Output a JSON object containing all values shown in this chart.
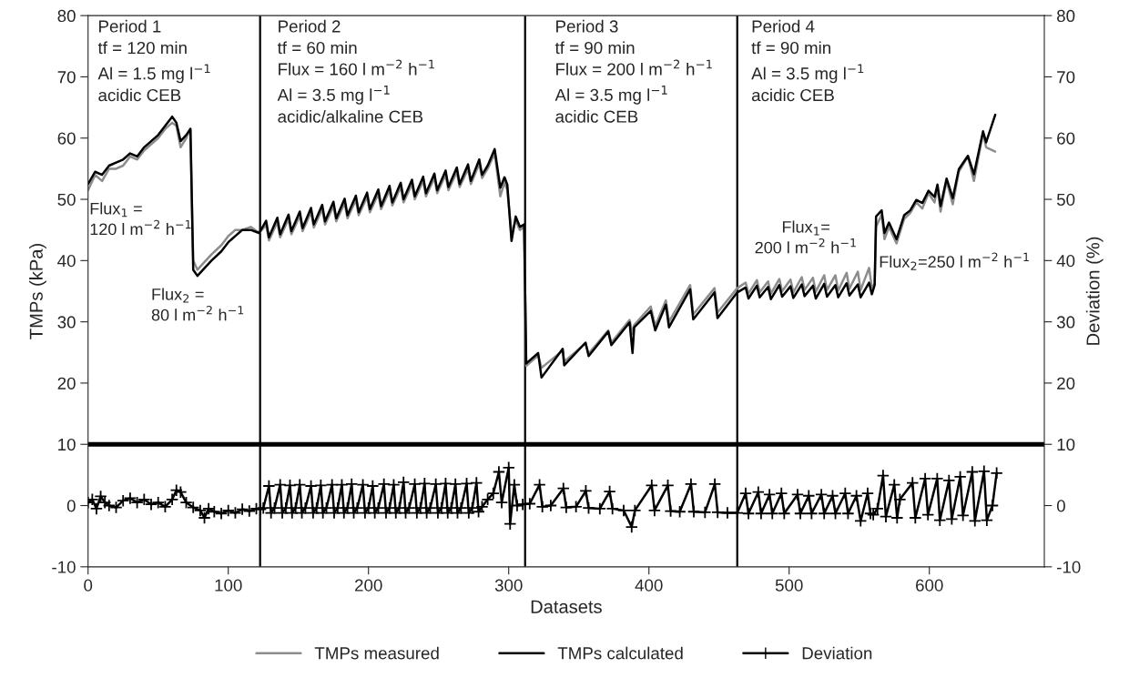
{
  "chart_data": {
    "type": "line",
    "xlabel": "Datasets",
    "ylabel": "TMPs (kPa)",
    "y2label": "Deviation (%)",
    "xlim": [
      0,
      682
    ],
    "xticks": [
      0,
      100,
      200,
      300,
      400,
      500,
      600
    ],
    "ylim": [
      -10,
      80
    ],
    "yticks": [
      -10,
      0,
      10,
      20,
      30,
      40,
      50,
      60,
      70,
      80
    ],
    "y2lim": [
      -10,
      80
    ],
    "y2ticks": [
      -10,
      0,
      10,
      20,
      30,
      40,
      50,
      60,
      70,
      80
    ],
    "legend": "bottom",
    "x": [
      0,
      5,
      10,
      15,
      20,
      25,
      30,
      35,
      40,
      45,
      50,
      55,
      60,
      63,
      66,
      70,
      73,
      75,
      78,
      82,
      88,
      95,
      100,
      105,
      110,
      116,
      122,
      127,
      129,
      135,
      137,
      143,
      145,
      151,
      153,
      159,
      161,
      167,
      169,
      175,
      177,
      183,
      185,
      191,
      193,
      199,
      201,
      207,
      209,
      215,
      217,
      223,
      225,
      231,
      233,
      239,
      241,
      247,
      249,
      255,
      257,
      263,
      265,
      271,
      273,
      279,
      281,
      285,
      290,
      294,
      297,
      299,
      302,
      305,
      308,
      311,
      312.5,
      321,
      323.4,
      338.5,
      339.6,
      354.8,
      357,
      371,
      373.2,
      386.2,
      388.3,
      389.5,
      401.3,
      404.5,
      412.1,
      414.3,
      429.4,
      431.6,
      446.8,
      448.9,
      463,
      469,
      471,
      477,
      479,
      485,
      487,
      493,
      495,
      501,
      503,
      509,
      511,
      517,
      519,
      525,
      527,
      533,
      535,
      541,
      543,
      549,
      551,
      557,
      559,
      561,
      562,
      566,
      568,
      571.2,
      576.6,
      582,
      586.4,
      590.7,
      595,
      599.4,
      603.7,
      605.8,
      608,
      612.3,
      616.7,
      621,
      627.5,
      631.8,
      638.3,
      640.5,
      647
    ],
    "series": [
      {
        "name": "TMPs measured",
        "color": "#8c8c8c",
        "values": [
          51.5,
          54,
          53,
          55,
          55,
          55.5,
          57,
          56.5,
          58,
          59,
          60,
          61.5,
          62.5,
          62,
          58.5,
          60,
          61.5,
          40,
          38.5,
          39.5,
          41,
          42.5,
          44,
          45,
          45,
          45.5,
          44.5,
          45.8,
          43.3,
          46.3,
          43.8,
          46.8,
          44.3,
          47.3,
          44.8,
          47.9,
          45.4,
          48.4,
          45.9,
          48.9,
          46.4,
          49.4,
          46.9,
          49.9,
          47.4,
          50.4,
          47.9,
          50.9,
          48.4,
          51.5,
          49.0,
          52.0,
          49.5,
          52.5,
          50.0,
          53.0,
          50.5,
          53.5,
          51.0,
          54.0,
          51.5,
          54.5,
          52.0,
          55.0,
          52.5,
          55.8,
          53.5,
          55,
          57.5,
          50.5,
          52.8,
          51.5,
          44.5,
          46.5,
          45,
          45.5,
          22.8,
          24.5,
          22.5,
          25.3,
          23.5,
          26.5,
          24.8,
          28.6,
          26.6,
          30.3,
          28.0,
          29.5,
          32.5,
          29.3,
          33.5,
          30,
          36,
          31.2,
          35.5,
          31.5,
          35.5,
          36.4,
          34.6,
          36.8,
          34.8,
          36.6,
          34.6,
          37.0,
          35.0,
          36.9,
          34.8,
          37.3,
          35.2,
          37.2,
          34.9,
          37.6,
          35.2,
          37.6,
          35.1,
          38.0,
          35.4,
          38.2,
          35.2,
          38.8,
          35.6,
          36.2,
          45.5,
          47.5,
          43.5,
          45.5,
          42.8,
          46.8,
          47.8,
          49.5,
          48.5,
          51,
          49.5,
          52,
          48,
          53,
          49.2,
          54.5,
          57,
          53,
          60.8,
          58.5,
          57.8
        ]
      },
      {
        "name": "TMPs calculated",
        "color": "#000000",
        "values": [
          52.5,
          54.5,
          54,
          55.5,
          56,
          56.5,
          57.5,
          57,
          58.5,
          59.5,
          60.5,
          62,
          63.5,
          62.5,
          59.5,
          60.5,
          61.5,
          38.5,
          37.5,
          38.5,
          40,
          41.5,
          43,
          44,
          45,
          45,
          44.5,
          46.5,
          43.8,
          47.0,
          44.3,
          47.5,
          44.8,
          48.0,
          45.3,
          48.6,
          45.9,
          49.1,
          46.4,
          49.6,
          46.9,
          50.1,
          47.4,
          50.6,
          47.9,
          51.1,
          48.4,
          51.6,
          48.9,
          52.2,
          49.5,
          52.7,
          50.0,
          53.2,
          50.5,
          53.7,
          51.0,
          54.2,
          51.5,
          54.7,
          52.0,
          55.2,
          52.5,
          55.7,
          53.0,
          56.5,
          54.0,
          55.5,
          58.2,
          51.9,
          53.6,
          52.4,
          43.2,
          47.2,
          45.5,
          45.9,
          23.2,
          24.9,
          20.9,
          25.6,
          22.9,
          26.6,
          24.4,
          28.4,
          26.2,
          29.9,
          24.9,
          29.1,
          31.8,
          28.6,
          32.8,
          29.1,
          35.3,
          30.4,
          34.8,
          30.6,
          34.8,
          35.6,
          33.8,
          35.9,
          34.0,
          35.7,
          33.7,
          36.0,
          34.1,
          35.8,
          33.9,
          36.1,
          34.2,
          35.9,
          33.8,
          36.2,
          34.1,
          36.0,
          34.0,
          36.3,
          34.3,
          36.1,
          34.0,
          36.4,
          34.5,
          36.0,
          47.2,
          48.2,
          44.5,
          46.2,
          43.5,
          47.4,
          48.2,
          49.9,
          49.4,
          51.4,
          50.4,
          52.4,
          48.9,
          53.4,
          50.2,
          54.9,
          57.1,
          54.1,
          61.1,
          59.3,
          63.8
        ]
      },
      {
        "name": "Deviation",
        "color": "#000000",
        "axis": "y2",
        "marker": "cross",
        "x": [
          0,
          3,
          6,
          9,
          12,
          15,
          20,
          25,
          30,
          35,
          40,
          45,
          50,
          55,
          60,
          63,
          66,
          70,
          75,
          80,
          83,
          86,
          90,
          95,
          100,
          105,
          110,
          115,
          120,
          123,
          125,
          129,
          130.5,
          133,
          137,
          138.5,
          141,
          144,
          145.5,
          148,
          151,
          152.5,
          155,
          159,
          160.5,
          163,
          166,
          167.5,
          170,
          174,
          175.5,
          178,
          181,
          182.5,
          185,
          188,
          189.5,
          192,
          196,
          197.5,
          200,
          203,
          204.5,
          207,
          211,
          212.5,
          215,
          218,
          219.5,
          222,
          225,
          226.5,
          229,
          233,
          234.5,
          237,
          240,
          241.5,
          244,
          248,
          249.5,
          252,
          255,
          256.5,
          259,
          262,
          263.5,
          266,
          270,
          271.5,
          274,
          277,
          278.5,
          281,
          285,
          289,
          293,
          295,
          300,
          301,
          304,
          306,
          310,
          315,
          322,
          324,
          330,
          339,
          341,
          348,
          355,
          357,
          365,
          372,
          374,
          382,
          387.7,
          390,
          402,
          404,
          413.5,
          415.5,
          422,
          430,
          432,
          440,
          447,
          449,
          456,
          463,
          469,
          471,
          478,
          480,
          486,
          488,
          494.5,
          496.5,
          506,
          508,
          514,
          516,
          523,
          525,
          531,
          533,
          540,
          542,
          548,
          551,
          556,
          558,
          560,
          563,
          567,
          569,
          575,
          577,
          579,
          588,
          590,
          597,
          599,
          605.6,
          607.5,
          614,
          616,
          622,
          624,
          630.6,
          632.5,
          639,
          641,
          645,
          648
        ],
        "values": [
          0.5,
          1,
          -0.5,
          1.5,
          0.5,
          0,
          -0.3,
          0.8,
          1.2,
          0.5,
          1,
          0.2,
          0.5,
          -0.2,
          1,
          2.5,
          2.2,
          0.5,
          -0.3,
          -0.8,
          -2,
          -0.5,
          -1,
          -1.3,
          -0.8,
          -1.2,
          -0.6,
          -0.9,
          -0.5,
          -0.6,
          -0.4,
          3.2,
          -1.2,
          -0.4,
          3.4,
          -1.2,
          -0.4,
          3.3,
          -1.2,
          -0.4,
          3.4,
          -1.2,
          -0.4,
          3.2,
          -1.2,
          -0.4,
          3.3,
          -1.2,
          -0.4,
          3.4,
          -1.2,
          -0.4,
          3.4,
          -1.2,
          -0.4,
          3.5,
          -1.2,
          -0.4,
          3.4,
          -1.2,
          -0.4,
          3.2,
          -1.2,
          -0.4,
          3.5,
          -1.2,
          -0.4,
          3.4,
          -1.2,
          -0.4,
          3.8,
          -1.2,
          -0.4,
          3.5,
          -1.2,
          -0.4,
          3.6,
          -1.2,
          -0.4,
          3.5,
          -1.2,
          -0.4,
          3.6,
          -1.2,
          -0.4,
          3.5,
          -1.2,
          -0.4,
          3.6,
          -1.2,
          -0.4,
          3.7,
          -1.0,
          -0.2,
          1.0,
          2.0,
          5.5,
          0.5,
          6.2,
          -3.0,
          3.4,
          0,
          0.2,
          0.3,
          3.4,
          -0.2,
          0,
          2.8,
          -0.3,
          -0.2,
          2.4,
          -0.4,
          -0.5,
          2.3,
          -0.5,
          -0.8,
          -3.5,
          -0.8,
          3.3,
          -0.8,
          3.3,
          -0.9,
          -1,
          3.5,
          -1,
          -1.1,
          3.5,
          -1.1,
          -1.2,
          -1.2,
          2.0,
          -1.3,
          2.2,
          -1.3,
          1.8,
          -1.3,
          2.0,
          -1.3,
          1.8,
          -1.3,
          1.6,
          -1.3,
          1.8,
          -1.3,
          1.6,
          -1.3,
          2.0,
          -1.3,
          1.6,
          -2.5,
          2.0,
          -1.3,
          -1.5,
          -0.5,
          4.9,
          -1.8,
          3.4,
          -2.0,
          1,
          3.7,
          -2.0,
          4.4,
          -1.5,
          4.4,
          -2.4,
          4.1,
          -2.2,
          4.7,
          -1.6,
          5.5,
          -2.5,
          5.6,
          -2.4,
          0,
          5.3
        ]
      }
    ],
    "ref_lines": [
      {
        "axis": "x",
        "value": 122.7,
        "color": "#000000"
      },
      {
        "axis": "x",
        "value": 311.7,
        "color": "#000000"
      },
      {
        "axis": "x",
        "value": 463,
        "color": "#000000"
      },
      {
        "axis": "y",
        "value": 10,
        "color": "#000000"
      }
    ],
    "annotations": [
      "Period 1\ntf = 120 min\nAl = 1.5 mg l$^{−1}$\nacidic CEB",
      "Period 2\ntf = 60 min\nFlux = 160 l m$^{−2}$ h$^{−1}$\nAl = 3.5 mg l$^{−1}$\nacidic/alkaline CEB",
      "Period 3\ntf = 90 min\nFlux = 200 l m$^{−2}$ h$^{−1}$\nAl = 3.5 mg l$^{−1}$\nacidic CEB",
      "Period 4\ntf = 90 min\nAl = 3.5 mg l$^{−1}$\nacidic CEB",
      "Flux$_{1}$ =\n120 l m$^{−2}$ h$^{−1}$",
      "Flux$_{2}$ =\n80 l m$^{−2}$ h$^{−1}$",
      "Flux$_{1}$=\n200 l m$^{−2}$ h$^{−1}$",
      "Flux$_{2}$=250 l m$^{−2}$ h$^{−1}$"
    ]
  }
}
